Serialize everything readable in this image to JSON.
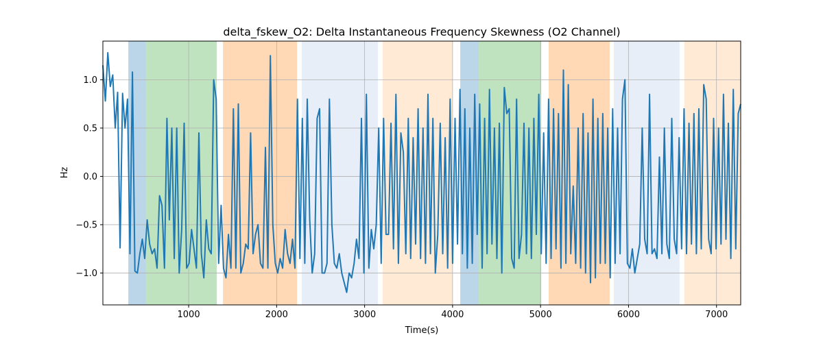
{
  "chart_data": {
    "type": "line",
    "title": "delta_fskew_O2: Delta Instantaneous Frequency Skewness (O2 Channel)",
    "xlabel": "Time(s)",
    "ylabel": "Hz",
    "xlim": [
      25,
      7275
    ],
    "ylim": [
      -1.33,
      1.4
    ],
    "xticks": [
      1000,
      2000,
      3000,
      4000,
      5000,
      6000,
      7000
    ],
    "yticks": [
      -1.0,
      -0.5,
      0.0,
      0.5,
      1.0
    ],
    "ytick_labels": [
      "−1.0",
      "−0.5",
      "0.0",
      "0.5",
      "1.0"
    ],
    "grid": true,
    "line_color": "#1f77b4",
    "spans": [
      {
        "start": 314,
        "end": 514,
        "color": "#1f77b4",
        "alpha": 0.3
      },
      {
        "start": 514,
        "end": 1320,
        "color": "#2ca02c",
        "alpha": 0.3
      },
      {
        "start": 1390,
        "end": 2232,
        "color": "#ff7f0e",
        "alpha": 0.3
      },
      {
        "start": 2286,
        "end": 3152,
        "color": "#aec7e8",
        "alpha": 0.3
      },
      {
        "start": 3206,
        "end": 4001,
        "color": "#ffbb78",
        "alpha": 0.3
      },
      {
        "start": 4087,
        "end": 4298,
        "color": "#1f77b4",
        "alpha": 0.3
      },
      {
        "start": 4298,
        "end": 5007,
        "color": "#2ca02c",
        "alpha": 0.3
      },
      {
        "start": 5092,
        "end": 5786,
        "color": "#ff7f0e",
        "alpha": 0.3
      },
      {
        "start": 5832,
        "end": 6580,
        "color": "#aec7e8",
        "alpha": 0.3
      },
      {
        "start": 6635,
        "end": 7275,
        "color": "#ffbb78",
        "alpha": 0.3
      }
    ],
    "series": [
      {
        "name": "delta_fskew_O2",
        "x_start": 25,
        "x_end": 7275,
        "values": [
          1.15,
          0.78,
          1.28,
          0.93,
          1.05,
          0.5,
          0.87,
          -0.74,
          0.86,
          0.5,
          0.8,
          -0.8,
          1.08,
          -0.98,
          -1.0,
          -0.8,
          -0.65,
          -0.85,
          -0.45,
          -0.7,
          -0.8,
          -0.75,
          -0.95,
          -0.2,
          -0.3,
          -0.95,
          0.6,
          -0.45,
          0.5,
          -0.85,
          0.5,
          -1.0,
          -0.55,
          0.55,
          -0.95,
          -0.9,
          -0.55,
          -0.75,
          -0.95,
          0.45,
          -0.8,
          -1.05,
          -0.45,
          -0.75,
          -0.8,
          1.0,
          0.8,
          -0.9,
          -0.3,
          -0.95,
          -1.05,
          -0.6,
          -0.95,
          0.7,
          -0.95,
          0.75,
          -1.0,
          -0.9,
          -0.7,
          -0.75,
          0.45,
          -0.8,
          -0.6,
          -0.5,
          -0.9,
          -0.95,
          0.3,
          -0.95,
          1.25,
          -0.5,
          -0.9,
          -1.0,
          -0.85,
          -0.95,
          -0.55,
          -0.8,
          -0.9,
          -0.65,
          -0.95,
          0.8,
          -0.85,
          0.6,
          -0.9,
          0.8,
          -0.45,
          -1.0,
          -0.8,
          0.6,
          0.7,
          -1.0,
          -1.0,
          -0.9,
          0.8,
          -0.5,
          -0.9,
          -0.95,
          -0.8,
          -1.0,
          -1.1,
          -1.2,
          -1.0,
          -1.05,
          -0.9,
          -0.65,
          -0.85,
          0.6,
          -1.0,
          0.85,
          -0.95,
          -0.55,
          -0.75,
          -0.5,
          0.5,
          -0.9,
          0.6,
          -0.6,
          -0.6,
          0.55,
          -0.75,
          0.85,
          -0.9,
          0.45,
          0.25,
          -0.8,
          0.6,
          -0.85,
          0.4,
          -0.7,
          0.7,
          -0.85,
          0.5,
          -0.9,
          0.85,
          -0.8,
          0.6,
          -1.0,
          -0.6,
          0.55,
          -0.8,
          0.4,
          -0.95,
          0.8,
          -0.9,
          0.6,
          -0.7,
          0.9,
          -0.8,
          0.7,
          -0.95,
          0.5,
          -0.9,
          0.85,
          -0.6,
          0.75,
          -0.95,
          0.6,
          -0.8,
          0.9,
          -0.7,
          0.5,
          -0.85,
          0.55,
          -1.0,
          0.92,
          0.65,
          0.7,
          -0.85,
          -0.95,
          0.8,
          -0.85,
          -0.6,
          0.55,
          -0.8,
          0.5,
          -0.85,
          0.6,
          -0.6,
          0.85,
          -0.8,
          0.45,
          -0.9,
          0.8,
          -0.85,
          0.7,
          -0.75,
          0.65,
          -0.95,
          1.1,
          -0.9,
          0.95,
          -0.8,
          -0.1,
          -0.9,
          0.5,
          -0.95,
          0.65,
          -1.0,
          0.45,
          -1.1,
          0.8,
          -1.05,
          0.6,
          -0.9,
          0.65,
          -0.9,
          0.5,
          -1.05,
          0.7,
          -0.9,
          0.5,
          -0.8,
          0.8,
          1.0,
          -0.9,
          -0.95,
          -0.75,
          -1.0,
          -0.85,
          -0.7,
          0.5,
          -0.65,
          -0.8,
          0.85,
          -0.8,
          -0.75,
          -0.85,
          0.2,
          -0.8,
          0.5,
          -0.7,
          -0.85,
          0.6,
          -0.65,
          -0.8,
          0.4,
          -0.75,
          0.7,
          -0.8,
          0.55,
          -0.7,
          0.65,
          -0.8,
          0.7,
          -0.75,
          0.95,
          0.8,
          -0.65,
          -0.8,
          0.6,
          -0.75,
          0.5,
          -0.7,
          0.85,
          -0.65,
          0.55,
          -0.85,
          0.9,
          -0.75,
          0.65,
          0.75
        ]
      }
    ]
  }
}
